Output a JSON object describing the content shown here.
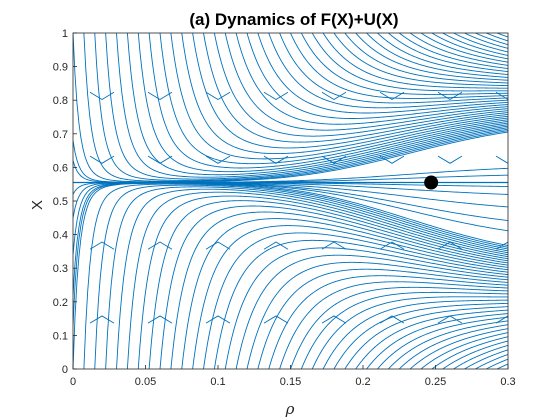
{
  "chart_data": {
    "type": "line",
    "title": "(a) Dynamics of F(X)+U(X)",
    "xlabel": "ρ",
    "ylabel": "X",
    "xlim": [
      0,
      0.3
    ],
    "ylim": [
      0,
      1
    ],
    "xticks": [
      "0",
      "0.05",
      "0.1",
      "0.15",
      "0.2",
      "0.25",
      "0.3"
    ],
    "yticks": [
      "0",
      "0.1",
      "0.2",
      "0.3",
      "0.4",
      "0.5",
      "0.6",
      "0.7",
      "0.8",
      "0.9",
      "1"
    ],
    "grid": false,
    "series_color": "#0072BD",
    "marker_color": "#000000",
    "equilibrium_x_value": 0.555,
    "equilibrium_point": {
      "x": 0.247,
      "y": 0.555
    },
    "flow": "trajectories converge from above and below toward X ≈ 0.555; convergence is fast for small ρ and slow for large ρ",
    "arrow_rows_above": [
      0.82,
      0.63
    ],
    "arrow_rows_below": [
      0.36,
      0.14
    ],
    "arrow_cols": [
      0.02,
      0.06,
      0.1,
      0.14,
      0.18,
      0.22,
      0.26,
      0.3
    ]
  }
}
